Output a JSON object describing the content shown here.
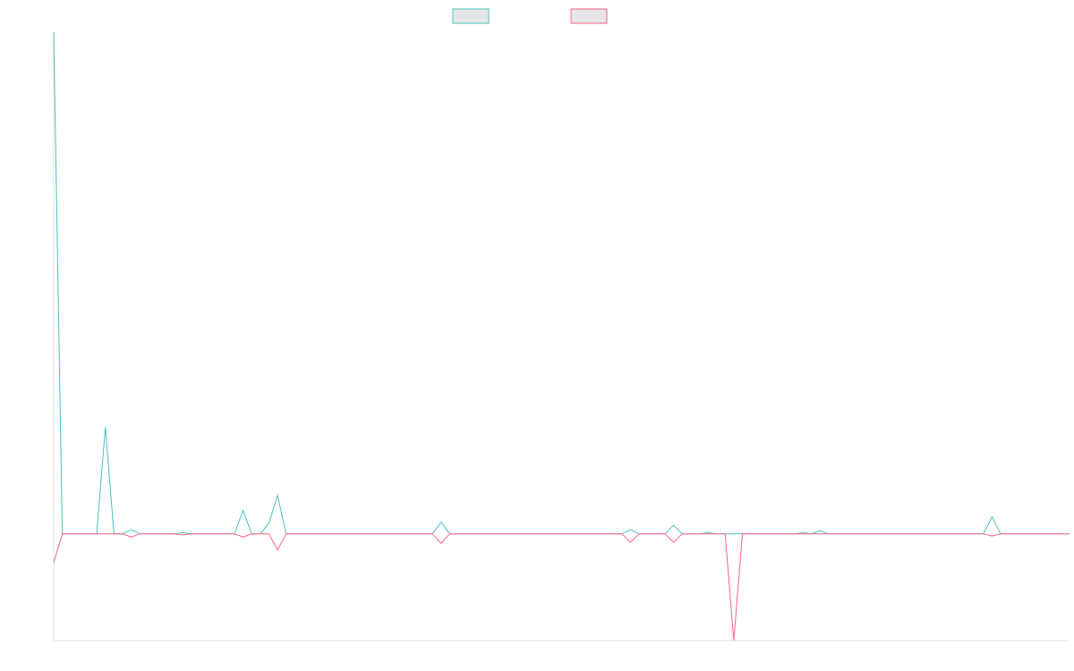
{
  "chart_data": {
    "type": "line",
    "title": "",
    "xlabel": "",
    "ylabel": "",
    "ylim": [
      -1,
      4.7
    ],
    "grid": false,
    "legend_position": "top-center",
    "x": [
      0,
      1,
      2,
      3,
      4,
      5,
      6,
      7,
      8,
      9,
      10,
      11,
      12,
      13,
      14,
      15,
      16,
      17,
      18,
      19,
      20,
      21,
      22,
      23,
      24,
      25,
      26,
      27,
      28,
      29,
      30,
      31,
      32,
      33,
      34,
      35,
      36,
      37,
      38,
      39,
      40,
      41,
      42,
      43,
      44,
      45,
      46,
      47,
      48,
      49,
      50,
      51,
      52,
      53,
      54,
      55,
      56,
      57,
      58,
      59,
      60,
      61,
      62,
      63,
      64,
      65,
      66,
      67,
      68,
      69,
      70,
      71,
      72,
      73,
      74,
      75,
      76,
      77,
      78,
      79,
      80,
      81,
      82,
      83,
      84,
      85,
      86,
      87,
      88,
      89,
      90,
      91,
      92,
      93,
      94,
      95,
      96,
      97,
      98,
      99,
      100,
      101,
      102,
      103,
      104,
      105,
      106,
      107,
      108,
      109,
      110,
      111,
      112,
      113,
      114,
      115,
      116,
      117,
      118
    ],
    "series": [
      {
        "color": "#4bc0c0",
        "values": [
          4.7,
          0,
          0,
          0,
          0,
          0,
          1,
          0,
          0,
          0.04,
          0,
          0,
          0,
          0,
          0,
          0.01,
          0,
          0,
          0,
          0,
          0,
          0,
          0.22,
          0,
          0,
          0.1,
          0.36,
          0,
          0,
          0,
          0,
          0,
          0,
          0,
          0,
          0,
          0,
          0,
          0,
          0,
          0,
          0,
          0,
          0,
          0,
          0.11,
          0,
          0,
          0,
          0,
          0,
          0,
          0,
          0,
          0,
          0,
          0,
          0,
          0,
          0,
          0,
          0,
          0,
          0,
          0,
          0,
          0,
          0.04,
          0,
          0,
          0,
          0,
          0.08,
          0,
          0,
          0,
          0.01,
          0,
          0,
          0,
          0,
          0,
          0,
          0,
          0,
          0,
          0,
          0.01,
          0,
          0.03,
          0,
          0,
          0,
          0,
          0,
          0,
          0,
          0,
          0,
          0,
          0,
          0,
          0,
          0,
          0,
          0,
          0,
          0,
          0,
          0.16,
          0,
          0,
          0,
          0,
          0,
          0,
          0,
          0,
          0
        ]
      },
      {
        "color": "#ff6384",
        "values": [
          -0.27,
          0,
          0,
          0,
          0,
          0,
          0,
          0,
          0,
          -0.03,
          0,
          0,
          0,
          0,
          0,
          -0.01,
          0,
          0,
          0,
          0,
          0,
          0,
          -0.03,
          0,
          0,
          0,
          -0.15,
          0,
          0,
          0,
          0,
          0,
          0,
          0,
          0,
          0,
          0,
          0,
          0,
          0,
          0,
          0,
          0,
          0,
          0,
          -0.09,
          0,
          0,
          0,
          0,
          0,
          0,
          0,
          0,
          0,
          0,
          0,
          0,
          0,
          0,
          0,
          0,
          0,
          0,
          0,
          0,
          0,
          -0.08,
          0,
          0,
          0,
          0,
          -0.08,
          0,
          0,
          0,
          0,
          0,
          0,
          -1,
          0,
          0,
          0,
          0,
          0,
          0,
          0,
          0,
          0,
          0,
          0,
          0,
          0,
          0,
          0,
          0,
          0,
          0,
          0,
          0,
          0,
          0,
          0,
          0,
          0,
          0,
          0,
          0,
          0,
          -0.02,
          0,
          0,
          0,
          0,
          0,
          0,
          0,
          0,
          0
        ]
      }
    ]
  }
}
